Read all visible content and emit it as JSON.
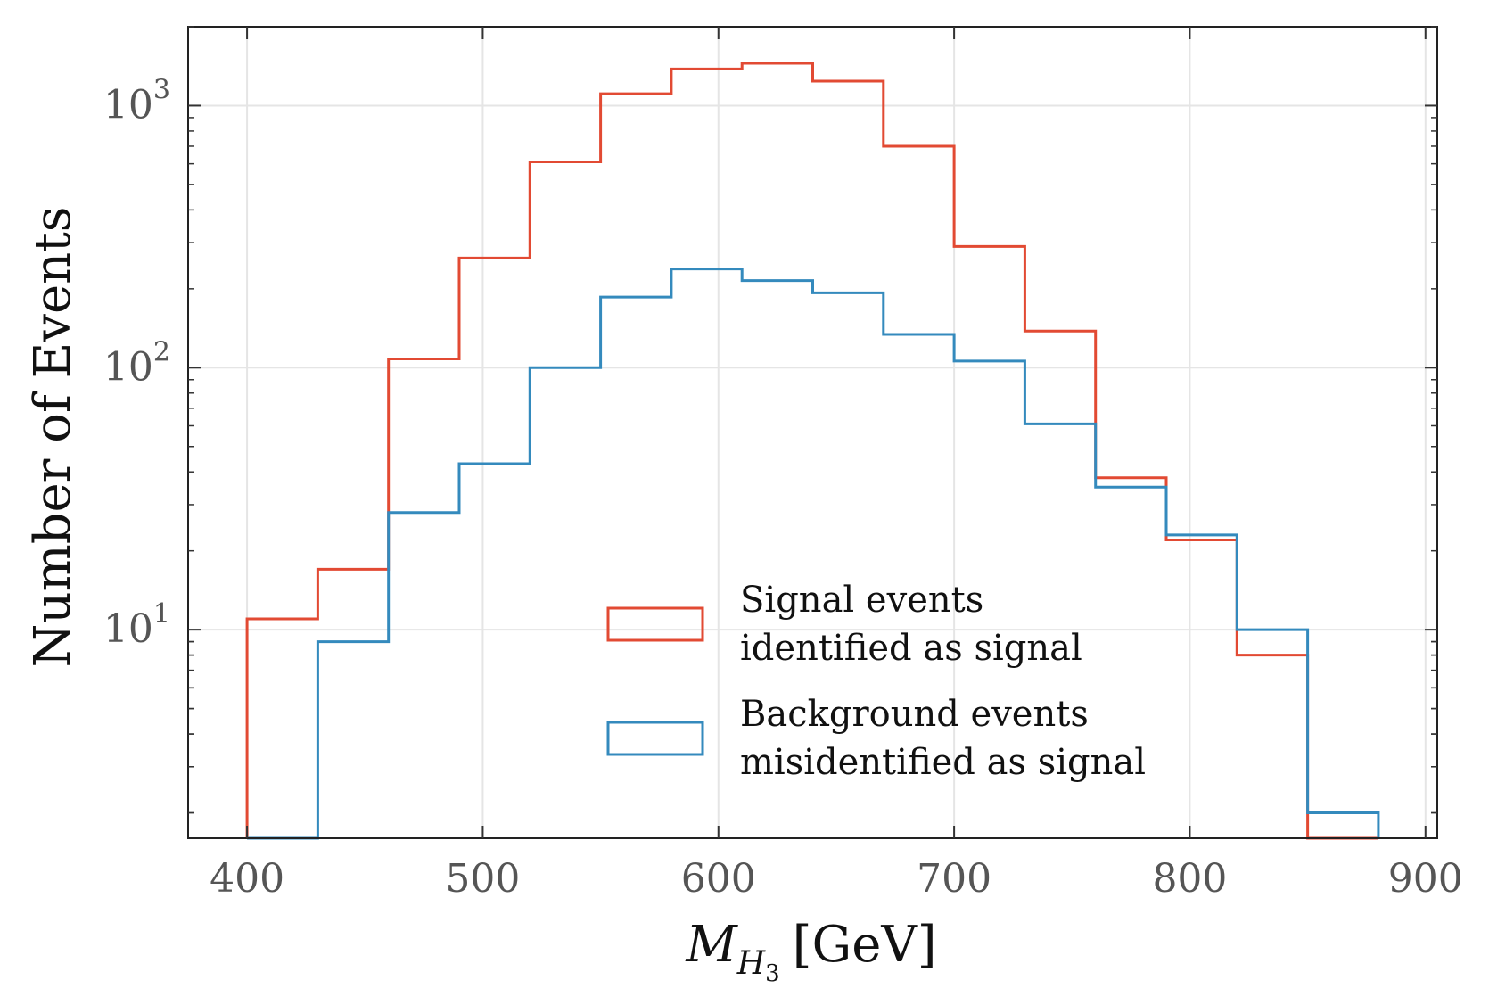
{
  "chart_data": {
    "type": "histogram-step",
    "title": "",
    "xlabel": {
      "main": "M",
      "subscript": "H",
      "subsubscript": "3",
      "unit": "[GeV]"
    },
    "ylabel": "Number of Events",
    "yscale": "log",
    "xlim": [
      375,
      905
    ],
    "ylim": [
      1.6,
      2000
    ],
    "grid": true,
    "legend_position": "lower-center",
    "xticks": [
      400,
      500,
      600,
      700,
      800,
      900
    ],
    "xtick_labels": [
      "400",
      "500",
      "600",
      "700",
      "800",
      "900"
    ],
    "yticks": [
      10,
      100,
      1000
    ],
    "ytick_labels": [
      {
        "base": "10",
        "exp": "1"
      },
      {
        "base": "10",
        "exp": "2"
      },
      {
        "base": "10",
        "exp": "3"
      }
    ],
    "bin_edges": [
      400,
      430,
      460,
      490,
      520,
      550,
      580,
      610,
      640,
      670,
      700,
      730,
      760,
      790,
      820,
      850,
      880
    ],
    "series": [
      {
        "name": "Signal events identified as signal",
        "legend_lines": [
          "Signal events",
          "identified as signal"
        ],
        "color": "#e24a33",
        "values": [
          11,
          17,
          108,
          262,
          610,
          1110,
          1380,
          1450,
          1240,
          700,
          290,
          138,
          38,
          22,
          8,
          0
        ]
      },
      {
        "name": "Background events misidentified as signal",
        "legend_lines": [
          "Background events",
          "misidentified as signal"
        ],
        "color": "#348abd",
        "values": [
          0,
          9,
          28,
          43,
          100,
          186,
          238,
          215,
          193,
          134,
          106,
          61,
          35,
          23,
          10,
          2
        ]
      }
    ]
  }
}
